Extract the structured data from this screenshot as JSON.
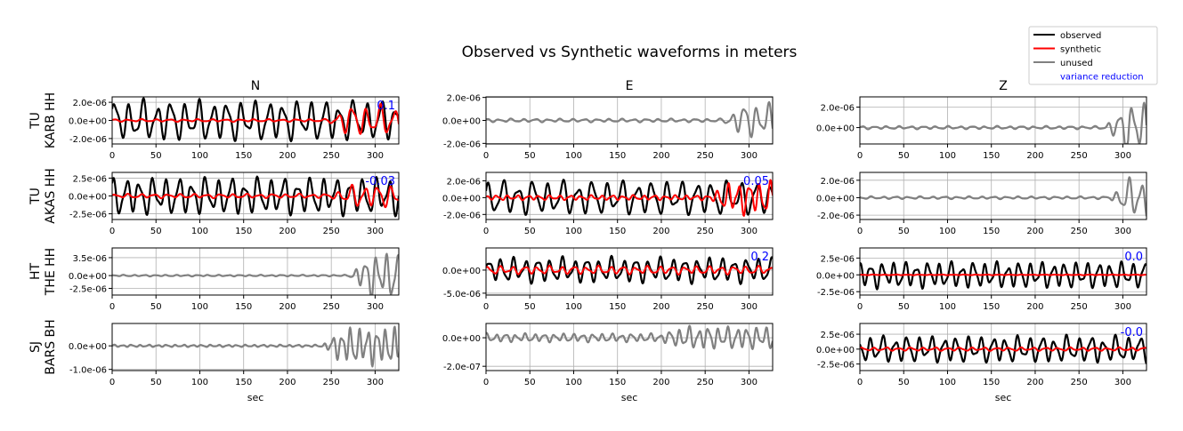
{
  "title": "Observed vs Synthetic waveforms in meters",
  "legend": {
    "placement": "top-right",
    "items": [
      {
        "label": "observed",
        "color": "#000000",
        "kind": "line"
      },
      {
        "label": "synthetic",
        "color": "#ff0000",
        "kind": "line"
      },
      {
        "label": "unused",
        "color": "#808080",
        "kind": "line"
      },
      {
        "label": "variance reduction",
        "color": "#0000ff",
        "kind": "text"
      }
    ]
  },
  "colors": {
    "observed": "#000000",
    "synthetic": "#ff0000",
    "unused": "#808080",
    "vr": "#0000ff",
    "grid": "#b0b0b0"
  },
  "xlabel": "sec",
  "chart_data": {
    "type": "line",
    "title": "Observed vs Synthetic waveforms in meters",
    "xlabel": "sec",
    "xlim": [
      0,
      327
    ],
    "xticks": [
      0,
      50,
      100,
      150,
      200,
      250,
      300
    ],
    "columns": [
      "N",
      "E",
      "Z"
    ],
    "grid": true,
    "rows": [
      {
        "station": "TU\nKARB HH",
        "panels": [
          {
            "component": "N",
            "used": true,
            "ylim": [
              -2.6e-06,
              2.6e-06
            ],
            "yticks": [
              2e-06,
              0,
              -2e-06
            ],
            "ytick_labels": [
              "2.0e-06",
              "0.0e+00",
              "-2.0e-06"
            ],
            "vr": "0.1",
            "observed": {
              "amp": 2.3e-06,
              "period": 16,
              "phase": 0.3
            },
            "synthetic": {
              "amp": 1.5e-07,
              "late_amp": 1.7e-06,
              "late_start": 245,
              "period": 16,
              "phase": 0.8
            }
          },
          {
            "component": "E",
            "used": false,
            "ylim": [
              -2.05e-06,
              2.05e-06
            ],
            "yticks": [
              2e-06,
              0,
              -2e-06
            ],
            "ytick_labels": [
              "2.0e-06",
              "0.0e+00",
              "-2.0e-06"
            ],
            "vr": "",
            "observed": {
              "amp": 1.5e-07,
              "late_amp": 1.5e-06,
              "late_start": 270,
              "period": 14,
              "phase": 1.2
            }
          },
          {
            "component": "Z",
            "used": false,
            "ylim": [
              -1.6e-06,
              3e-06
            ],
            "yticks": [
              2e-06,
              0
            ],
            "ytick_labels": [
              "2.0e-06",
              "0.0e+00"
            ],
            "vr": "",
            "observed": {
              "amp": 1.5e-07,
              "late_amp": 2.6e-06,
              "late_start": 280,
              "period": 14,
              "phase": 0.4
            }
          }
        ]
      },
      {
        "station": "TU\nAKAS HH",
        "panels": [
          {
            "component": "N",
            "used": true,
            "ylim": [
              -3.3e-06,
              3.3e-06
            ],
            "yticks": [
              2.5e-06,
              0,
              -2.5e-06
            ],
            "ytick_labels": [
              "2.5e-06",
              "0.0e+00",
              "-2.5e-06"
            ],
            "vr": "-0.03",
            "observed": {
              "amp": 2.7e-06,
              "period": 15,
              "phase": 1.0
            },
            "synthetic": {
              "amp": 3e-07,
              "late_amp": 1.6e-06,
              "late_start": 250,
              "period": 15,
              "phase": 0.2
            }
          },
          {
            "component": "E",
            "used": true,
            "ylim": [
              -2.6e-06,
              3e-06
            ],
            "yticks": [
              2e-06,
              0,
              -2e-06
            ],
            "ytick_labels": [
              "2.0e-06",
              "0.0e+00",
              "-2.0e-06"
            ],
            "vr": "0.05",
            "observed": {
              "amp": 2.1e-06,
              "period": 17,
              "phase": 0.6
            },
            "synthetic": {
              "amp": 3e-07,
              "late_amp": 2e-06,
              "late_start": 255,
              "period": 12,
              "phase": 1.4
            }
          },
          {
            "component": "Z",
            "used": false,
            "ylim": [
              -2.5e-06,
              2.9e-06
            ],
            "yticks": [
              2e-06,
              0,
              -2e-06
            ],
            "ytick_labels": [
              "2.0e-06",
              "0.0e+00",
              "-2.0e-06"
            ],
            "vr": "",
            "observed": {
              "amp": 1.5e-07,
              "late_amp": 2.4e-06,
              "late_start": 285,
              "period": 14,
              "phase": 2.0
            }
          }
        ]
      },
      {
        "station": "HT\nTHE HH",
        "panels": [
          {
            "component": "N",
            "used": false,
            "ylim": [
              -3.8e-06,
              5.4e-06
            ],
            "yticks": [
              3.5e-06,
              0,
              -2.5e-06
            ],
            "ytick_labels": [
              "3.5e-06",
              "0.0e+00",
              "-2.5e-06"
            ],
            "vr": "",
            "observed": {
              "amp": 1.5e-07,
              "late_amp": 4.5e-06,
              "late_start": 270,
              "period": 12,
              "phase": 0.9
            }
          },
          {
            "component": "E",
            "used": true,
            "ylim": [
              -5.4e-06,
              4.8e-06
            ],
            "yticks": [
              0,
              -5e-06
            ],
            "ytick_labels": [
              "0.0e+00",
              "-5.0e-06"
            ],
            "vr": "0.2",
            "observed": {
              "amp": 2.8e-06,
              "period": 14,
              "phase": 0.1
            },
            "synthetic": {
              "amp": 9e-07,
              "period": 14,
              "phase": 0.4
            }
          },
          {
            "component": "Z",
            "used": true,
            "ylim": [
              -3e-06,
              4e-06
            ],
            "yticks": [
              2.5e-06,
              0,
              -2.5e-06
            ],
            "ytick_labels": [
              "2.5e-06",
              "0.0e+00",
              "-2.5e-06"
            ],
            "vr": "0.0",
            "observed": {
              "amp": 2e-06,
              "period": 13,
              "phase": 1.7
            },
            "synthetic": {
              "amp": 5e-08,
              "period": 13,
              "phase": 0.5
            }
          }
        ]
      },
      {
        "station": "SJ\nBARS BH",
        "panels": [
          {
            "component": "N",
            "used": false,
            "ylim": [
              -1.05e-06,
              9.5e-07
            ],
            "yticks": [
              0,
              -1e-06
            ],
            "ytick_labels": [
              "0.0e+00",
              "-1.0e-06"
            ],
            "vr": "",
            "observed": {
              "amp": 5e-08,
              "late_amp": 8e-07,
              "late_start": 240,
              "period": 10,
              "phase": 0.3
            }
          },
          {
            "component": "E",
            "used": false,
            "ylim": [
              -2.3e-07,
              1e-07
            ],
            "yticks": [
              0,
              -2e-07
            ],
            "ytick_labels": [
              "0.0e+00",
              "-2.0e-07"
            ],
            "vr": "",
            "observed": {
              "amp": 3e-08,
              "late_amp": 8e-08,
              "late_start": 200,
              "period": 11,
              "phase": 1.1
            }
          },
          {
            "component": "Z",
            "used": true,
            "ylim": [
              -3.6e-06,
              4.3e-06
            ],
            "yticks": [
              2.5e-06,
              0,
              -2.5e-06
            ],
            "ytick_labels": [
              "2.5e-06",
              "0.0e+00",
              "-2.5e-06"
            ],
            "vr": "-0.0",
            "observed": {
              "amp": 2.3e-06,
              "period": 14,
              "phase": 2.4
            },
            "synthetic": {
              "amp": 3e-07,
              "period": 14,
              "phase": 0.6
            }
          }
        ]
      }
    ]
  }
}
